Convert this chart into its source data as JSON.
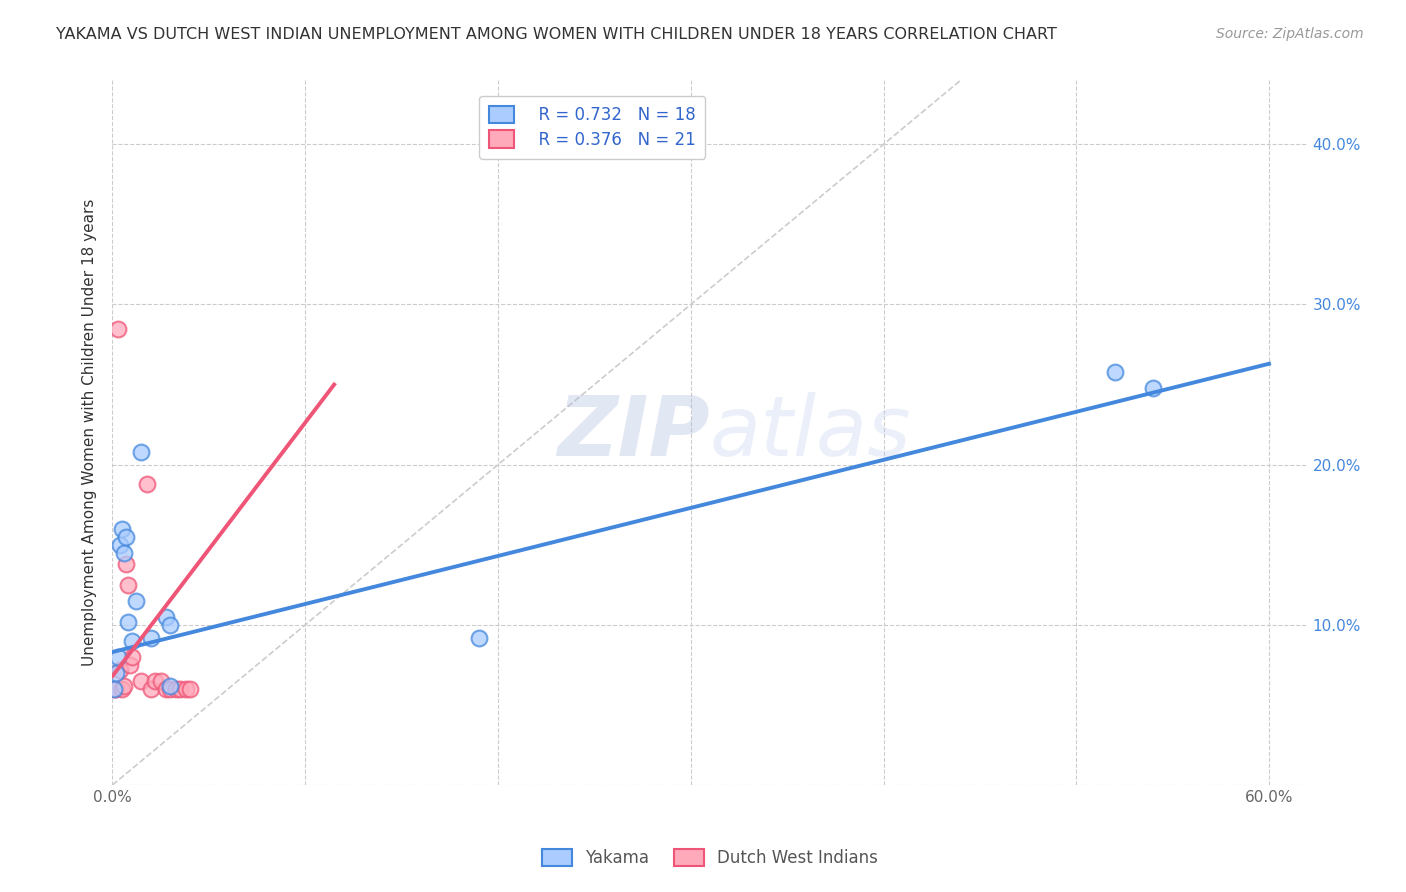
{
  "title": "YAKAMA VS DUTCH WEST INDIAN UNEMPLOYMENT AMONG WOMEN WITH CHILDREN UNDER 18 YEARS CORRELATION CHART",
  "source": "Source: ZipAtlas.com",
  "ylabel": "Unemployment Among Women with Children Under 18 years",
  "xlim": [
    0.0,
    0.62
  ],
  "ylim": [
    0.0,
    0.44
  ],
  "xticks": [
    0.0,
    0.1,
    0.2,
    0.3,
    0.4,
    0.5,
    0.6
  ],
  "yticks": [
    0.0,
    0.1,
    0.2,
    0.3,
    0.4
  ],
  "xtick_labels": [
    "0.0%",
    "",
    "",
    "",
    "",
    "",
    "60.0%"
  ],
  "right_ytick_labels": [
    "",
    "10.0%",
    "20.0%",
    "30.0%",
    "40.0%"
  ],
  "yakama_color": "#aaccff",
  "dutch_color": "#ffaabb",
  "yakama_line_color": "#4488dd",
  "dutch_line_color": "#ee5577",
  "diagonal_color": "#cccccc",
  "yakama_R": 0.732,
  "yakama_N": 18,
  "dutch_R": 0.376,
  "dutch_N": 21,
  "yakama_scatter_x": [
    0.001,
    0.002,
    0.003,
    0.004,
    0.005,
    0.006,
    0.007,
    0.008,
    0.01,
    0.012,
    0.015,
    0.02,
    0.028,
    0.03,
    0.03,
    0.19,
    0.52,
    0.54
  ],
  "yakama_scatter_y": [
    0.06,
    0.07,
    0.08,
    0.15,
    0.16,
    0.145,
    0.155,
    0.102,
    0.09,
    0.115,
    0.208,
    0.092,
    0.105,
    0.1,
    0.062,
    0.092,
    0.258,
    0.248
  ],
  "dutch_scatter_x": [
    0.001,
    0.002,
    0.003,
    0.004,
    0.005,
    0.006,
    0.007,
    0.008,
    0.009,
    0.01,
    0.015,
    0.018,
    0.02,
    0.022,
    0.025,
    0.028,
    0.03,
    0.033,
    0.035,
    0.038,
    0.04
  ],
  "dutch_scatter_y": [
    0.06,
    0.06,
    0.285,
    0.072,
    0.06,
    0.062,
    0.138,
    0.125,
    0.075,
    0.08,
    0.065,
    0.188,
    0.06,
    0.065,
    0.065,
    0.06,
    0.06,
    0.06,
    0.06,
    0.06,
    0.06
  ],
  "yakama_trend_x": [
    0.0,
    0.6
  ],
  "yakama_trend_y": [
    0.083,
    0.263
  ],
  "dutch_trend_x": [
    0.0,
    0.115
  ],
  "dutch_trend_y": [
    0.068,
    0.25
  ],
  "watermark_zip": "ZIP",
  "watermark_atlas": "atlas",
  "legend_labels": [
    "Yakama",
    "Dutch West Indians"
  ],
  "marker_size": 130,
  "marker_edge_width": 1.5,
  "legend_text_color": "#3366cc"
}
